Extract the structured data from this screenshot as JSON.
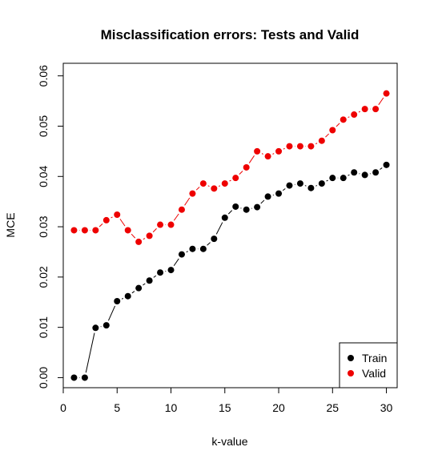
{
  "chart_data": {
    "type": "scatter",
    "title": "Misclassification errors: Tests and Valid",
    "xlabel": "k-value",
    "ylabel": "MCE",
    "xlim": [
      0,
      31
    ],
    "ylim": [
      -0.002,
      0.0625
    ],
    "xticks": [
      "0",
      "5",
      "10",
      "15",
      "20",
      "25",
      "30"
    ],
    "yticks": [
      "0.00",
      "0.01",
      "0.02",
      "0.03",
      "0.04",
      "0.05",
      "0.06"
    ],
    "legend_position": "bottom-right",
    "x": [
      1,
      2,
      3,
      4,
      5,
      6,
      7,
      8,
      9,
      10,
      11,
      12,
      13,
      14,
      15,
      16,
      17,
      18,
      19,
      20,
      21,
      22,
      23,
      24,
      25,
      26,
      27,
      28,
      29,
      30
    ],
    "series": [
      {
        "name": "Train",
        "color": "#000000",
        "values": [
          0.0,
          0.0,
          0.0099,
          0.0104,
          0.0152,
          0.0162,
          0.0178,
          0.0193,
          0.0209,
          0.0214,
          0.0245,
          0.0256,
          0.0256,
          0.0276,
          0.0318,
          0.034,
          0.0334,
          0.0339,
          0.036,
          0.0366,
          0.0382,
          0.0386,
          0.0377,
          0.0386,
          0.0397,
          0.0397,
          0.0408,
          0.0403,
          0.0408,
          0.0423
        ]
      },
      {
        "name": "Valid",
        "color": "#ee0000",
        "values": [
          0.0293,
          0.0293,
          0.0293,
          0.0313,
          0.0324,
          0.0293,
          0.027,
          0.0282,
          0.0304,
          0.0304,
          0.0334,
          0.0366,
          0.0386,
          0.0376,
          0.0386,
          0.0397,
          0.0418,
          0.045,
          0.044,
          0.045,
          0.046,
          0.046,
          0.046,
          0.0471,
          0.0492,
          0.0513,
          0.0523,
          0.0534,
          0.0534,
          0.0565
        ]
      }
    ]
  }
}
